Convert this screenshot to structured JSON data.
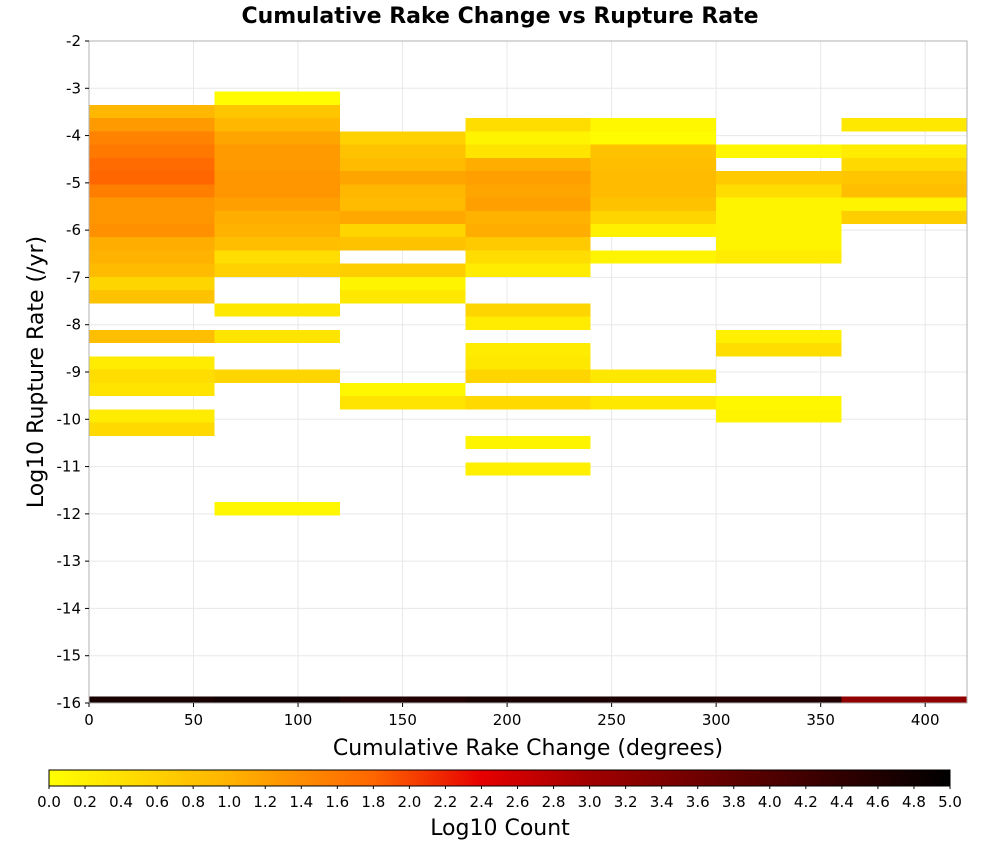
{
  "chart_data": {
    "type": "heatmap",
    "title": "Cumulative Rake Change vs Rupture Rate",
    "xlabel": "Cumulative Rake Change (degrees)",
    "ylabel": "Log10 Rupture Rate (/yr)",
    "xlim": [
      0,
      420
    ],
    "ylim": [
      -16,
      -2
    ],
    "x_ticks": [
      0,
      50,
      100,
      150,
      200,
      250,
      300,
      350,
      400
    ],
    "y_ticks": [
      -2,
      -3,
      -4,
      -5,
      -6,
      -7,
      -8,
      -9,
      -10,
      -11,
      -12,
      -13,
      -14,
      -15,
      -16
    ],
    "grid": true,
    "bin_width_x": 60,
    "bin_height_y": 0.28,
    "colorbar": {
      "label": "Log10 Count",
      "range": [
        0.0,
        5.0
      ],
      "ticks": [
        "0.0",
        "0.2",
        "0.4",
        "0.6",
        "0.8",
        "1.0",
        "1.2",
        "1.4",
        "1.6",
        "1.8",
        "2.0",
        "2.2",
        "2.4",
        "2.6",
        "2.8",
        "3.0",
        "3.2",
        "3.4",
        "3.6",
        "3.8",
        "4.0",
        "4.2",
        "4.4",
        "4.6",
        "4.8",
        "5.0"
      ],
      "stops": [
        {
          "v": 0.0,
          "color": "#ffff00"
        },
        {
          "v": 1.0,
          "color": "#ffb300"
        },
        {
          "v": 1.8,
          "color": "#ff6600"
        },
        {
          "v": 2.4,
          "color": "#e60000"
        },
        {
          "v": 3.0,
          "color": "#a00000"
        },
        {
          "v": 3.8,
          "color": "#600000"
        },
        {
          "v": 5.0,
          "color": "#000000"
        }
      ]
    },
    "columns": [
      {
        "x_start": 0,
        "cells": [
          {
            "y": -3.35,
            "v": 0.95
          },
          {
            "y": -3.63,
            "v": 1.25
          },
          {
            "y": -3.91,
            "v": 1.5
          },
          {
            "y": -4.19,
            "v": 1.6
          },
          {
            "y": -4.47,
            "v": 1.75
          },
          {
            "y": -4.75,
            "v": 1.8
          },
          {
            "y": -5.03,
            "v": 1.55
          },
          {
            "y": -5.31,
            "v": 1.3
          },
          {
            "y": -5.59,
            "v": 1.3
          },
          {
            "y": -5.87,
            "v": 1.35
          },
          {
            "y": -6.15,
            "v": 1.05
          },
          {
            "y": -6.43,
            "v": 1.0
          },
          {
            "y": -6.71,
            "v": 0.9
          },
          {
            "y": -6.99,
            "v": 0.55
          },
          {
            "y": -7.27,
            "v": 0.8
          },
          {
            "y": -8.11,
            "v": 0.85
          },
          {
            "y": -8.67,
            "v": 0.25
          },
          {
            "y": -8.95,
            "v": 0.45
          },
          {
            "y": -9.23,
            "v": 0.35
          },
          {
            "y": -9.79,
            "v": 0.25
          },
          {
            "y": -10.07,
            "v": 0.5
          }
        ]
      },
      {
        "x_start": 60,
        "cells": [
          {
            "y": -3.07,
            "v": 0.05
          },
          {
            "y": -3.35,
            "v": 0.75
          },
          {
            "y": -3.63,
            "v": 0.95
          },
          {
            "y": -3.91,
            "v": 1.15
          },
          {
            "y": -4.19,
            "v": 1.25
          },
          {
            "y": -4.47,
            "v": 1.25
          },
          {
            "y": -4.75,
            "v": 1.3
          },
          {
            "y": -5.03,
            "v": 1.3
          },
          {
            "y": -5.31,
            "v": 1.2
          },
          {
            "y": -5.59,
            "v": 1.05
          },
          {
            "y": -5.87,
            "v": 1.0
          },
          {
            "y": -6.15,
            "v": 0.85
          },
          {
            "y": -6.43,
            "v": 0.45
          },
          {
            "y": -6.71,
            "v": 0.6
          },
          {
            "y": -7.55,
            "v": 0.3
          },
          {
            "y": -8.11,
            "v": 0.35
          },
          {
            "y": -8.95,
            "v": 0.55
          },
          {
            "y": -11.75,
            "v": 0.1
          }
        ]
      },
      {
        "x_start": 120,
        "cells": [
          {
            "y": -3.91,
            "v": 0.6
          },
          {
            "y": -4.19,
            "v": 0.8
          },
          {
            "y": -4.47,
            "v": 0.9
          },
          {
            "y": -4.75,
            "v": 1.15
          },
          {
            "y": -5.03,
            "v": 0.95
          },
          {
            "y": -5.31,
            "v": 0.9
          },
          {
            "y": -5.59,
            "v": 1.1
          },
          {
            "y": -5.87,
            "v": 0.55
          },
          {
            "y": -6.15,
            "v": 0.8
          },
          {
            "y": -6.71,
            "v": 0.65
          },
          {
            "y": -6.99,
            "v": 0.15
          },
          {
            "y": -7.27,
            "v": 0.3
          },
          {
            "y": -9.23,
            "v": 0.1
          },
          {
            "y": -9.51,
            "v": 0.35
          }
        ]
      },
      {
        "x_start": 180,
        "cells": [
          {
            "y": -3.63,
            "v": 0.45
          },
          {
            "y": -3.91,
            "v": 0.15
          },
          {
            "y": -4.19,
            "v": 0.35
          },
          {
            "y": -4.47,
            "v": 1.05
          },
          {
            "y": -4.75,
            "v": 1.2
          },
          {
            "y": -5.03,
            "v": 1.15
          },
          {
            "y": -5.31,
            "v": 1.2
          },
          {
            "y": -5.59,
            "v": 1.0
          },
          {
            "y": -5.87,
            "v": 1.05
          },
          {
            "y": -6.15,
            "v": 0.7
          },
          {
            "y": -6.43,
            "v": 0.45
          },
          {
            "y": -6.71,
            "v": 0.25
          },
          {
            "y": -7.55,
            "v": 0.55
          },
          {
            "y": -7.83,
            "v": 0.25
          },
          {
            "y": -8.39,
            "v": 0.25
          },
          {
            "y": -8.67,
            "v": 0.3
          },
          {
            "y": -8.95,
            "v": 0.55
          },
          {
            "y": -9.51,
            "v": 0.5
          },
          {
            "y": -10.35,
            "v": 0.15
          },
          {
            "y": -10.91,
            "v": 0.2
          }
        ]
      },
      {
        "x_start": 240,
        "cells": [
          {
            "y": -3.63,
            "v": 0.1
          },
          {
            "y": -3.91,
            "v": 0.05
          },
          {
            "y": -4.19,
            "v": 0.8
          },
          {
            "y": -4.47,
            "v": 0.85
          },
          {
            "y": -4.75,
            "v": 0.9
          },
          {
            "y": -5.03,
            "v": 0.9
          },
          {
            "y": -5.31,
            "v": 0.8
          },
          {
            "y": -5.59,
            "v": 0.55
          },
          {
            "y": -5.87,
            "v": 0.2
          },
          {
            "y": -6.43,
            "v": 0.15
          },
          {
            "y": -8.95,
            "v": 0.3
          },
          {
            "y": -9.51,
            "v": 0.3
          }
        ]
      },
      {
        "x_start": 300,
        "cells": [
          {
            "y": -4.19,
            "v": 0.1
          },
          {
            "y": -4.75,
            "v": 0.7
          },
          {
            "y": -5.03,
            "v": 0.45
          },
          {
            "y": -5.31,
            "v": 0.15
          },
          {
            "y": -5.59,
            "v": 0.15
          },
          {
            "y": -5.87,
            "v": 0.15
          },
          {
            "y": -6.15,
            "v": 0.15
          },
          {
            "y": -6.43,
            "v": 0.25
          },
          {
            "y": -8.11,
            "v": 0.2
          },
          {
            "y": -8.39,
            "v": 0.45
          },
          {
            "y": -9.51,
            "v": 0.1
          },
          {
            "y": -9.79,
            "v": 0.15
          }
        ]
      },
      {
        "x_start": 360,
        "cells": [
          {
            "y": -3.63,
            "v": 0.3
          },
          {
            "y": -4.19,
            "v": 0.25
          },
          {
            "y": -4.47,
            "v": 0.5
          },
          {
            "y": -4.75,
            "v": 0.75
          },
          {
            "y": -5.03,
            "v": 0.85
          },
          {
            "y": -5.31,
            "v": 0.15
          },
          {
            "y": -5.59,
            "v": 0.65
          }
        ]
      }
    ],
    "bottom_row": {
      "y": -16,
      "cells": [
        {
          "x_start": 0,
          "v": 4.7
        },
        {
          "x_start": 60,
          "v": 4.8
        },
        {
          "x_start": 120,
          "v": 4.6
        },
        {
          "x_start": 180,
          "v": 4.7
        },
        {
          "x_start": 240,
          "v": 4.65
        },
        {
          "x_start": 300,
          "v": 4.6
        },
        {
          "x_start": 360,
          "v": 3.2
        }
      ]
    }
  }
}
